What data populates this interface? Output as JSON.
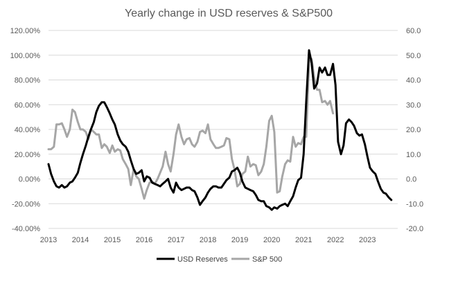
{
  "chart_data": {
    "type": "line",
    "title": "Yearly change in USD reserves & S&P500",
    "grid": true,
    "legend": "bottom",
    "x_axis": {
      "ticks": [
        "2013",
        "2014",
        "2015",
        "2016",
        "2017",
        "2018",
        "2019",
        "2020",
        "2021",
        "2022",
        "2023"
      ],
      "range": [
        2013.0,
        2023.95
      ]
    },
    "y_left": {
      "ticks": [
        "120.00%",
        "100.00%",
        "80.00%",
        "60.00%",
        "40.00%",
        "20.00%",
        "0.00%",
        "-20.00%",
        "-40.00%"
      ],
      "range": [
        -40,
        120
      ],
      "unit": "percent"
    },
    "y_right": {
      "ticks": [
        "60.0",
        "50.0",
        "40.0",
        "30.0",
        "20.0",
        "10.0",
        "0.0",
        "-10.0",
        "-20.0"
      ],
      "range": [
        -20,
        60
      ]
    },
    "series": [
      {
        "name": "USD Reserves",
        "axis": "left",
        "color": "#000000",
        "points": [
          [
            2013.0,
            12
          ],
          [
            2013.08,
            4
          ],
          [
            2013.17,
            -2
          ],
          [
            2013.25,
            -6
          ],
          [
            2013.33,
            -7
          ],
          [
            2013.42,
            -5
          ],
          [
            2013.5,
            -7
          ],
          [
            2013.58,
            -6
          ],
          [
            2013.67,
            -3
          ],
          [
            2013.75,
            -2
          ],
          [
            2013.83,
            1
          ],
          [
            2013.92,
            5
          ],
          [
            2014.0,
            13
          ],
          [
            2014.08,
            20
          ],
          [
            2014.17,
            27
          ],
          [
            2014.25,
            34
          ],
          [
            2014.33,
            40
          ],
          [
            2014.42,
            46
          ],
          [
            2014.5,
            54
          ],
          [
            2014.58,
            59
          ],
          [
            2014.67,
            62
          ],
          [
            2014.75,
            62
          ],
          [
            2014.83,
            58
          ],
          [
            2014.92,
            53
          ],
          [
            2015.0,
            48
          ],
          [
            2015.08,
            44
          ],
          [
            2015.17,
            36
          ],
          [
            2015.25,
            31
          ],
          [
            2015.33,
            28
          ],
          [
            2015.42,
            26
          ],
          [
            2015.5,
            22
          ],
          [
            2015.58,
            15
          ],
          [
            2015.67,
            8
          ],
          [
            2015.75,
            4
          ],
          [
            2015.83,
            5
          ],
          [
            2015.92,
            7
          ],
          [
            2016.0,
            -2
          ],
          [
            2016.08,
            2
          ],
          [
            2016.17,
            1
          ],
          [
            2016.25,
            -3
          ],
          [
            2016.33,
            -4
          ],
          [
            2016.42,
            -5
          ],
          [
            2016.5,
            -6
          ],
          [
            2016.58,
            -4
          ],
          [
            2016.67,
            -2
          ],
          [
            2016.75,
            0
          ],
          [
            2016.83,
            -7
          ],
          [
            2016.92,
            -11
          ],
          [
            2017.0,
            -3
          ],
          [
            2017.08,
            -7
          ],
          [
            2017.17,
            -9
          ],
          [
            2017.25,
            -8
          ],
          [
            2017.33,
            -7
          ],
          [
            2017.42,
            -7
          ],
          [
            2017.5,
            -9
          ],
          [
            2017.58,
            -10
          ],
          [
            2017.67,
            -15
          ],
          [
            2017.75,
            -21
          ],
          [
            2017.83,
            -18
          ],
          [
            2017.92,
            -15
          ],
          [
            2018.0,
            -11
          ],
          [
            2018.08,
            -8
          ],
          [
            2018.17,
            -6
          ],
          [
            2018.25,
            -6
          ],
          [
            2018.33,
            -7
          ],
          [
            2018.42,
            -7
          ],
          [
            2018.5,
            -4
          ],
          [
            2018.58,
            -1
          ],
          [
            2018.67,
            1
          ],
          [
            2018.75,
            6
          ],
          [
            2018.83,
            7
          ],
          [
            2018.92,
            9
          ],
          [
            2019.0,
            5
          ],
          [
            2019.08,
            -2
          ],
          [
            2019.17,
            -7
          ],
          [
            2019.25,
            -8
          ],
          [
            2019.33,
            -9
          ],
          [
            2019.42,
            -10
          ],
          [
            2019.5,
            -13
          ],
          [
            2019.58,
            -17
          ],
          [
            2019.67,
            -18
          ],
          [
            2019.75,
            -18
          ],
          [
            2019.83,
            -22
          ],
          [
            2019.92,
            -23
          ],
          [
            2020.0,
            -25
          ],
          [
            2020.08,
            -23
          ],
          [
            2020.17,
            -24
          ],
          [
            2020.25,
            -22
          ],
          [
            2020.33,
            -21
          ],
          [
            2020.42,
            -20
          ],
          [
            2020.5,
            -22
          ],
          [
            2020.58,
            -18
          ],
          [
            2020.67,
            -14
          ],
          [
            2020.75,
            -7
          ],
          [
            2020.83,
            -1
          ],
          [
            2020.92,
            1
          ],
          [
            2021.0,
            20
          ],
          [
            2021.08,
            62
          ],
          [
            2021.17,
            104
          ],
          [
            2021.25,
            94
          ],
          [
            2021.33,
            73
          ],
          [
            2021.42,
            77
          ],
          [
            2021.5,
            90
          ],
          [
            2021.58,
            86
          ],
          [
            2021.67,
            90
          ],
          [
            2021.75,
            84
          ],
          [
            2021.83,
            84
          ],
          [
            2021.92,
            93
          ],
          [
            2022.0,
            76
          ],
          [
            2022.08,
            30
          ],
          [
            2022.17,
            20
          ],
          [
            2022.25,
            27
          ],
          [
            2022.33,
            45
          ],
          [
            2022.42,
            48
          ],
          [
            2022.5,
            46
          ],
          [
            2022.58,
            43
          ],
          [
            2022.67,
            37
          ],
          [
            2022.75,
            35
          ],
          [
            2022.83,
            36
          ],
          [
            2022.92,
            28
          ],
          [
            2023.0,
            18
          ],
          [
            2023.08,
            9
          ],
          [
            2023.17,
            6
          ],
          [
            2023.25,
            4
          ],
          [
            2023.33,
            -2
          ],
          [
            2023.42,
            -8
          ],
          [
            2023.5,
            -11
          ],
          [
            2023.58,
            -12
          ],
          [
            2023.67,
            -15
          ],
          [
            2023.75,
            -17
          ]
        ]
      },
      {
        "name": "S&P 500",
        "axis": "right",
        "color": "#a6a6a6",
        "points": [
          [
            2013.0,
            12
          ],
          [
            2013.08,
            12
          ],
          [
            2013.17,
            13
          ],
          [
            2013.25,
            22
          ],
          [
            2013.33,
            22
          ],
          [
            2013.42,
            22.5
          ],
          [
            2013.5,
            20
          ],
          [
            2013.58,
            17
          ],
          [
            2013.67,
            20
          ],
          [
            2013.75,
            28
          ],
          [
            2013.83,
            27
          ],
          [
            2013.92,
            23
          ],
          [
            2014.0,
            20
          ],
          [
            2014.08,
            20
          ],
          [
            2014.17,
            19
          ],
          [
            2014.25,
            16
          ],
          [
            2014.33,
            20
          ],
          [
            2014.42,
            19
          ],
          [
            2014.5,
            18
          ],
          [
            2014.58,
            18
          ],
          [
            2014.67,
            12.5
          ],
          [
            2014.75,
            14
          ],
          [
            2014.83,
            13
          ],
          [
            2014.92,
            10.5
          ],
          [
            2015.0,
            13.5
          ],
          [
            2015.08,
            11
          ],
          [
            2015.17,
            12
          ],
          [
            2015.25,
            11.5
          ],
          [
            2015.33,
            8
          ],
          [
            2015.42,
            6
          ],
          [
            2015.5,
            4
          ],
          [
            2015.58,
            -2.5
          ],
          [
            2015.67,
            4
          ],
          [
            2015.75,
            1
          ],
          [
            2015.83,
            0
          ],
          [
            2015.92,
            -4
          ],
          [
            2016.0,
            -8
          ],
          [
            2016.08,
            -4.5
          ],
          [
            2016.17,
            -1.5
          ],
          [
            2016.25,
            -1
          ],
          [
            2016.33,
            -2
          ],
          [
            2016.42,
            0
          ],
          [
            2016.5,
            2.5
          ],
          [
            2016.58,
            5
          ],
          [
            2016.67,
            11
          ],
          [
            2016.75,
            6
          ],
          [
            2016.83,
            3
          ],
          [
            2016.92,
            10
          ],
          [
            2017.0,
            18
          ],
          [
            2017.08,
            22
          ],
          [
            2017.17,
            17
          ],
          [
            2017.25,
            14
          ],
          [
            2017.33,
            16
          ],
          [
            2017.42,
            16.5
          ],
          [
            2017.5,
            14
          ],
          [
            2017.58,
            13
          ],
          [
            2017.67,
            15
          ],
          [
            2017.75,
            19
          ],
          [
            2017.83,
            19.5
          ],
          [
            2017.92,
            18.5
          ],
          [
            2018.0,
            22
          ],
          [
            2018.08,
            16
          ],
          [
            2018.17,
            14
          ],
          [
            2018.25,
            12.5
          ],
          [
            2018.33,
            12.5
          ],
          [
            2018.42,
            13
          ],
          [
            2018.5,
            13.5
          ],
          [
            2018.58,
            16.5
          ],
          [
            2018.67,
            16
          ],
          [
            2018.75,
            8
          ],
          [
            2018.83,
            4
          ],
          [
            2018.92,
            -3
          ],
          [
            2019.0,
            -2
          ],
          [
            2019.08,
            2
          ],
          [
            2019.17,
            3
          ],
          [
            2019.25,
            9
          ],
          [
            2019.33,
            5
          ],
          [
            2019.42,
            6
          ],
          [
            2019.5,
            5.5
          ],
          [
            2019.58,
            1.5
          ],
          [
            2019.67,
            3
          ],
          [
            2019.75,
            6
          ],
          [
            2019.83,
            13
          ],
          [
            2019.92,
            23.5
          ],
          [
            2020.0,
            25.5
          ],
          [
            2020.08,
            19
          ],
          [
            2020.17,
            -5.5
          ],
          [
            2020.25,
            -5
          ],
          [
            2020.33,
            1
          ],
          [
            2020.42,
            6
          ],
          [
            2020.5,
            7.5
          ],
          [
            2020.58,
            7
          ],
          [
            2020.67,
            17
          ],
          [
            2020.75,
            13
          ],
          [
            2020.83,
            14.5
          ],
          [
            2020.92,
            14
          ],
          [
            2021.0,
            17
          ],
          [
            2021.08,
            17
          ],
          [
            2021.17,
            47
          ],
          [
            2021.25,
            48.5
          ],
          [
            2021.33,
            41
          ],
          [
            2021.42,
            36
          ],
          [
            2021.5,
            36
          ],
          [
            2021.58,
            31
          ],
          [
            2021.67,
            31.5
          ],
          [
            2021.75,
            30
          ],
          [
            2021.83,
            31.5
          ],
          [
            2021.92,
            26.5
          ]
        ]
      }
    ]
  }
}
